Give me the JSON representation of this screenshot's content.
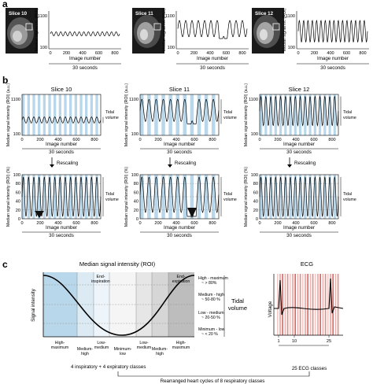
{
  "panels": {
    "a": {
      "letter": "a",
      "slices": [
        {
          "label": "Slice 10",
          "ylabel": "Median signal int. (ROI)",
          "yticks": [
            "100",
            "1100"
          ],
          "xlabel": "Image number",
          "xticks": [
            "0",
            "200",
            "400",
            "600",
            "800"
          ],
          "duration": "30 seconds"
        },
        {
          "label": "Slice 11",
          "ylabel": "Median signal int. (ROI)",
          "yticks": [
            "100",
            "1100"
          ],
          "xlabel": "Image number",
          "xticks": [
            "0",
            "200",
            "400",
            "600",
            "800"
          ],
          "duration": "30 seconds"
        },
        {
          "label": "Slice 12",
          "ylabel": "Median signal int. (ROI)",
          "yticks": [
            "100",
            "1100"
          ],
          "xlabel": "Image number",
          "xticks": [
            "0",
            "200",
            "400",
            "600",
            "800"
          ],
          "duration": "30 seconds"
        }
      ]
    },
    "b": {
      "letter": "b",
      "slices": [
        {
          "title": "Slice 10",
          "ylabel_top": "Median signal intensity (ROI) (a.u.)",
          "yticks_top": [
            "100",
            "1100"
          ],
          "ylabel_bottom": "Median signal intensity (ROI) (%)",
          "yticks_bottom": [
            "0",
            "20",
            "40",
            "60",
            "80",
            "100"
          ],
          "xlabel": "Image number",
          "xticks": [
            "0",
            "200",
            "400",
            "600",
            "800"
          ],
          "duration": "30 seconds",
          "tidal": "Tidal volume",
          "rescaling": "Rescaling"
        },
        {
          "title": "Slice 11",
          "ylabel_top": "Median signal intensity (ROI) (a.u.)",
          "yticks_top": [
            "100",
            "1100"
          ],
          "ylabel_bottom": "Median signal intensity (ROI) (%)",
          "yticks_bottom": [
            "0",
            "20",
            "40",
            "60",
            "80",
            "100"
          ],
          "xlabel": "Image number",
          "xticks": [
            "0",
            "200",
            "400",
            "600",
            "800"
          ],
          "duration": "30 seconds",
          "tidal": "Tidal volume",
          "rescaling": "Rescaling"
        },
        {
          "title": "Slice 12",
          "ylabel_top": "Median signal intensity (ROI) (a.u.)",
          "yticks_top": [
            "100",
            "1100"
          ],
          "ylabel_bottom": "Median signal intensity (ROI) (%)",
          "yticks_bottom": [
            "0",
            "20",
            "40",
            "60",
            "80",
            "100"
          ],
          "xlabel": "Image number",
          "xticks": [
            "0",
            "200",
            "400",
            "600",
            "800"
          ],
          "duration": "30 seconds",
          "tidal": "Tidal volume",
          "rescaling": "Rescaling"
        }
      ]
    },
    "c": {
      "letter": "c",
      "left_title": "Median signal intensity (ROI)",
      "ylabel": "Signal intensity",
      "end_inspiration": "End-inspiration",
      "end_expiration": "End-expiration",
      "bottom_classes": [
        "High-maximum",
        "Medium-high",
        "Low-medium",
        "Minimum-low",
        "Low-medium",
        "Medium-high",
        "High-maximum"
      ],
      "ranges": [
        "High - maximum ~ > 80%",
        "Medium - high ~ 50-80 %",
        "Low - medium ~ 20-50 %",
        "Minimum - low ~ < 20 %"
      ],
      "tidal": "Tidal volume",
      "class_summary": "4 inspiratory + 4 expiratory classes",
      "ecg_title": "ECG",
      "ecg_ylabel": "Voltage",
      "ecg_ticks": [
        "1",
        "10",
        "25"
      ],
      "ecg_summary": "25 ECG classes",
      "rearranged": "Rearranged heart cycles of 8 respiratory classes"
    }
  },
  "colors": {
    "stripe_blue": "#b9d7ea",
    "stripe_grey": "#d6d6d6",
    "ecg_red": "#e0605a",
    "fill_black": "#111111"
  }
}
